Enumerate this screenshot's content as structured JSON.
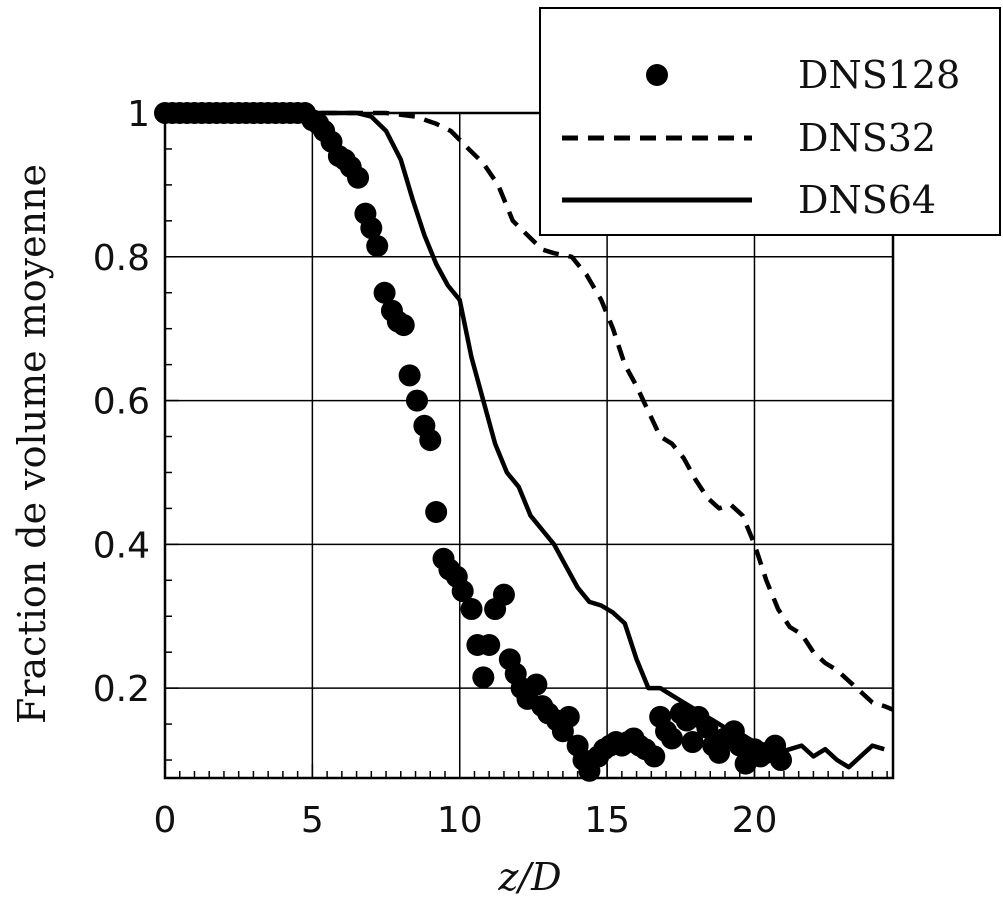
{
  "chart_data": {
    "type": "line",
    "xlabel": "z/D",
    "ylabel": "Fraction de volume moyenne",
    "xlim": [
      0,
      24.7
    ],
    "ylim": [
      0.075,
      1.0
    ],
    "xticks": [
      0,
      5,
      10,
      15,
      20
    ],
    "xtick_labels": [
      "0",
      "5",
      "10",
      "15",
      "20"
    ],
    "yticks": [
      0.2,
      0.4,
      0.6,
      0.8,
      1
    ],
    "ytick_labels": [
      "0.2",
      "0.4",
      "0.6",
      "0.8",
      "1"
    ],
    "grid": true,
    "legend_position": "top-right",
    "series": [
      {
        "name": "DNS128",
        "style": "markers",
        "color": "#000000",
        "x": [
          0,
          0.25,
          0.5,
          0.75,
          1,
          1.25,
          1.5,
          1.75,
          2,
          2.25,
          2.5,
          2.75,
          3,
          3.25,
          3.5,
          3.75,
          4,
          4.25,
          4.5,
          4.75,
          5,
          5.2,
          5.4,
          5.65,
          5.9,
          6.1,
          6.3,
          6.55,
          6.8,
          7.0,
          7.2,
          7.45,
          7.7,
          7.9,
          8.1,
          8.3,
          8.55,
          8.8,
          9.0,
          9.2,
          9.45,
          9.65,
          9.9,
          10.1,
          10.4,
          10.6,
          10.8,
          11.0,
          11.2,
          11.5,
          11.7,
          11.9,
          12.1,
          12.3,
          12.6,
          12.8,
          13.0,
          13.3,
          13.5,
          13.7,
          14.0,
          14.2,
          14.4,
          14.7,
          14.9,
          15.1,
          15.3,
          15.5,
          15.7,
          15.9,
          16.1,
          16.3,
          16.6,
          16.8,
          17.0,
          17.2,
          17.5,
          17.7,
          17.9,
          18.1,
          18.4,
          18.6,
          18.8,
          19.0,
          19.3,
          19.5,
          19.7,
          20.0,
          20.2,
          20.4,
          20.7,
          20.9
        ],
        "y": [
          1.0,
          1.0,
          1.0,
          1.0,
          1.0,
          1.0,
          1.0,
          1.0,
          1.0,
          1.0,
          1.0,
          1.0,
          1.0,
          1.0,
          1.0,
          1.0,
          1.0,
          1.0,
          1.0,
          1.0,
          0.99,
          0.985,
          0.975,
          0.96,
          0.94,
          0.935,
          0.925,
          0.91,
          0.86,
          0.84,
          0.815,
          0.75,
          0.725,
          0.71,
          0.705,
          0.635,
          0.6,
          0.565,
          0.545,
          0.445,
          0.38,
          0.365,
          0.355,
          0.335,
          0.31,
          0.26,
          0.215,
          0.26,
          0.31,
          0.33,
          0.24,
          0.22,
          0.2,
          0.185,
          0.205,
          0.175,
          0.165,
          0.155,
          0.14,
          0.16,
          0.12,
          0.1,
          0.085,
          0.105,
          0.115,
          0.12,
          0.125,
          0.12,
          0.125,
          0.13,
          0.12,
          0.115,
          0.105,
          0.16,
          0.14,
          0.13,
          0.165,
          0.155,
          0.125,
          0.16,
          0.145,
          0.12,
          0.11,
          0.13,
          0.14,
          0.12,
          0.095,
          0.115,
          0.105,
          0.11,
          0.12,
          0.1
        ]
      },
      {
        "name": "DNS32",
        "style": "dashed",
        "color": "#000000",
        "x": [
          0,
          4.8,
          7.5,
          8.5,
          9.2,
          9.7,
          10.3,
          10.8,
          11.3,
          11.8,
          12.3,
          12.8,
          13.2,
          13.8,
          14.3,
          14.8,
          15.2,
          15.6,
          16.0,
          16.4,
          16.8,
          17.2,
          17.6,
          18.0,
          18.4,
          18.8,
          19.2,
          19.6,
          20.0,
          20.4,
          20.8,
          21.2,
          21.6,
          22.0,
          22.4,
          22.8,
          23.2,
          23.6,
          24.0,
          24.4,
          24.7
        ],
        "y": [
          1.0,
          1.0,
          1.0,
          0.995,
          0.985,
          0.975,
          0.95,
          0.93,
          0.9,
          0.85,
          0.83,
          0.81,
          0.805,
          0.8,
          0.775,
          0.74,
          0.7,
          0.65,
          0.62,
          0.585,
          0.55,
          0.54,
          0.52,
          0.49,
          0.465,
          0.45,
          0.455,
          0.44,
          0.4,
          0.35,
          0.31,
          0.285,
          0.275,
          0.25,
          0.235,
          0.225,
          0.21,
          0.195,
          0.18,
          0.175,
          0.17
        ]
      },
      {
        "name": "DNS64",
        "style": "solid",
        "color": "#000000",
        "x": [
          0,
          6.5,
          7.0,
          7.5,
          8.0,
          8.4,
          8.8,
          9.2,
          9.6,
          10.0,
          10.4,
          10.8,
          11.2,
          11.6,
          12.0,
          12.4,
          12.8,
          13.2,
          13.6,
          14.0,
          14.4,
          14.8,
          15.2,
          15.6,
          16.0,
          16.4,
          16.8,
          17.2,
          17.6,
          18.0,
          18.4,
          18.8,
          19.2,
          19.6,
          20.0,
          20.4,
          20.8,
          21.2,
          21.6,
          22.0,
          22.4,
          22.8,
          23.2,
          23.6,
          24.0,
          24.4
        ],
        "y": [
          1.0,
          1.0,
          0.995,
          0.975,
          0.935,
          0.88,
          0.83,
          0.79,
          0.76,
          0.74,
          0.66,
          0.6,
          0.54,
          0.5,
          0.48,
          0.44,
          0.42,
          0.4,
          0.37,
          0.34,
          0.32,
          0.315,
          0.305,
          0.29,
          0.24,
          0.2,
          0.2,
          0.19,
          0.18,
          0.17,
          0.16,
          0.15,
          0.14,
          0.135,
          0.125,
          0.12,
          0.11,
          0.115,
          0.12,
          0.105,
          0.115,
          0.1,
          0.09,
          0.105,
          0.12,
          0.115
        ]
      }
    ]
  }
}
